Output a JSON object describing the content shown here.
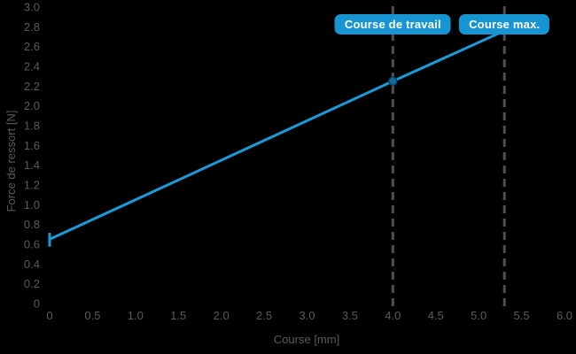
{
  "window": {
    "background": "#000000"
  },
  "chart_data": {
    "type": "line",
    "title": "",
    "xlabel": "Course [mm]",
    "ylabel": "Force de ressort [N]",
    "xlim": [
      0,
      6.0
    ],
    "ylim": [
      0,
      3.0
    ],
    "grid": false,
    "x_ticks": [
      0,
      0.5,
      1.0,
      1.5,
      2.0,
      2.5,
      3.0,
      3.5,
      4.0,
      4.5,
      5.0,
      5.5,
      6.0
    ],
    "x_tick_labels": [
      "0",
      "0.5",
      "1.0",
      "1.5",
      "2.0",
      "2.5",
      "3.0",
      "3.5",
      "4.0",
      "4.5",
      "5.0",
      "5.5",
      "6.0"
    ],
    "y_ticks": [
      0,
      0.2,
      0.4,
      0.6,
      0.8,
      1.0,
      1.2,
      1.4,
      1.6,
      1.8,
      2.0,
      2.2,
      2.4,
      2.6,
      2.8,
      3.0
    ],
    "y_tick_labels": [
      "0",
      "0.2",
      "0.4",
      "0.6",
      "0.8",
      "1.0",
      "1.2",
      "1.4",
      "1.6",
      "1.8",
      "2.0",
      "2.2",
      "2.4",
      "2.6",
      "2.8",
      "3.0"
    ],
    "series": [
      {
        "name": "Force de ressort",
        "points": [
          [
            0,
            0.65
          ],
          [
            4.0,
            2.25
          ],
          [
            5.3,
            2.76
          ]
        ],
        "color": "#1b9ad8",
        "line_width": 3,
        "markers": [
          {
            "x": 0,
            "y": 0.65,
            "shape": "tick"
          },
          {
            "x": 4.0,
            "y": 2.25,
            "shape": "circle"
          }
        ]
      }
    ],
    "annotations": [
      {
        "type": "vline",
        "x": 4.0,
        "label": "Course de travail",
        "line_color": "#4f4f4f",
        "label_bg": "#1795d3",
        "label_color": "#ffffff"
      },
      {
        "type": "vline",
        "x": 5.3,
        "label": "Course max.",
        "line_color": "#4f4f4f",
        "label_bg": "#1795d3",
        "label_color": "#ffffff"
      }
    ],
    "tick_color": "#5a5a5a",
    "axis_label_color": "#5a5a5a",
    "legend": "none"
  }
}
